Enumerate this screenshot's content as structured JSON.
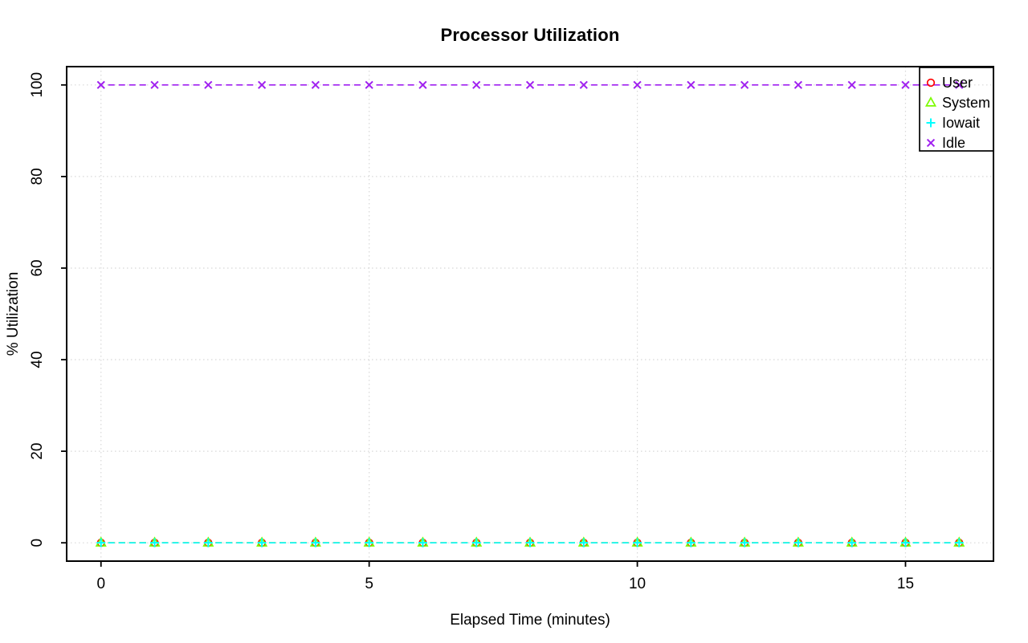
{
  "chart_data": {
    "type": "line",
    "title": "Processor Utilization",
    "xlabel": "Elapsed Time (minutes)",
    "ylabel": "% Utilization",
    "x": [
      0,
      1,
      2,
      3,
      4,
      5,
      6,
      7,
      8,
      9,
      10,
      11,
      12,
      13,
      14,
      15,
      16
    ],
    "series": [
      {
        "name": "User",
        "color": "#FF0000",
        "marker": "circle",
        "line_style": "dashed",
        "values": [
          0,
          0,
          0,
          0,
          0,
          0,
          0,
          0,
          0,
          0,
          0,
          0,
          0,
          0,
          0,
          0,
          0
        ]
      },
      {
        "name": "System",
        "color": "#7CFC00",
        "marker": "triangle",
        "line_style": "dashed",
        "values": [
          0,
          0,
          0,
          0,
          0,
          0,
          0,
          0,
          0,
          0,
          0,
          0,
          0,
          0,
          0,
          0,
          0
        ]
      },
      {
        "name": "Iowait",
        "color": "#00FFFF",
        "marker": "plus",
        "line_style": "dashed",
        "values": [
          0,
          0,
          0,
          0,
          0,
          0,
          0,
          0,
          0,
          0,
          0,
          0,
          0,
          0,
          0,
          0,
          0
        ]
      },
      {
        "name": "Idle",
        "color": "#A020F0",
        "marker": "x",
        "line_style": "dashed",
        "values": [
          100,
          100,
          100,
          100,
          100,
          100,
          100,
          100,
          100,
          100,
          100,
          100,
          100,
          100,
          100,
          100,
          100
        ]
      }
    ],
    "xlim": [
      0,
      16
    ],
    "ylim": [
      0,
      100
    ],
    "xticks": [
      0,
      5,
      10,
      15
    ],
    "yticks": [
      0,
      20,
      40,
      60,
      80,
      100
    ],
    "grid": true,
    "grid_color": "#D8D8D8",
    "axis_color": "#000000",
    "background": "#FFFFFF",
    "legend_position": "topright",
    "legend": {
      "items": [
        "User",
        "System",
        "Iowait",
        "Idle"
      ]
    }
  }
}
